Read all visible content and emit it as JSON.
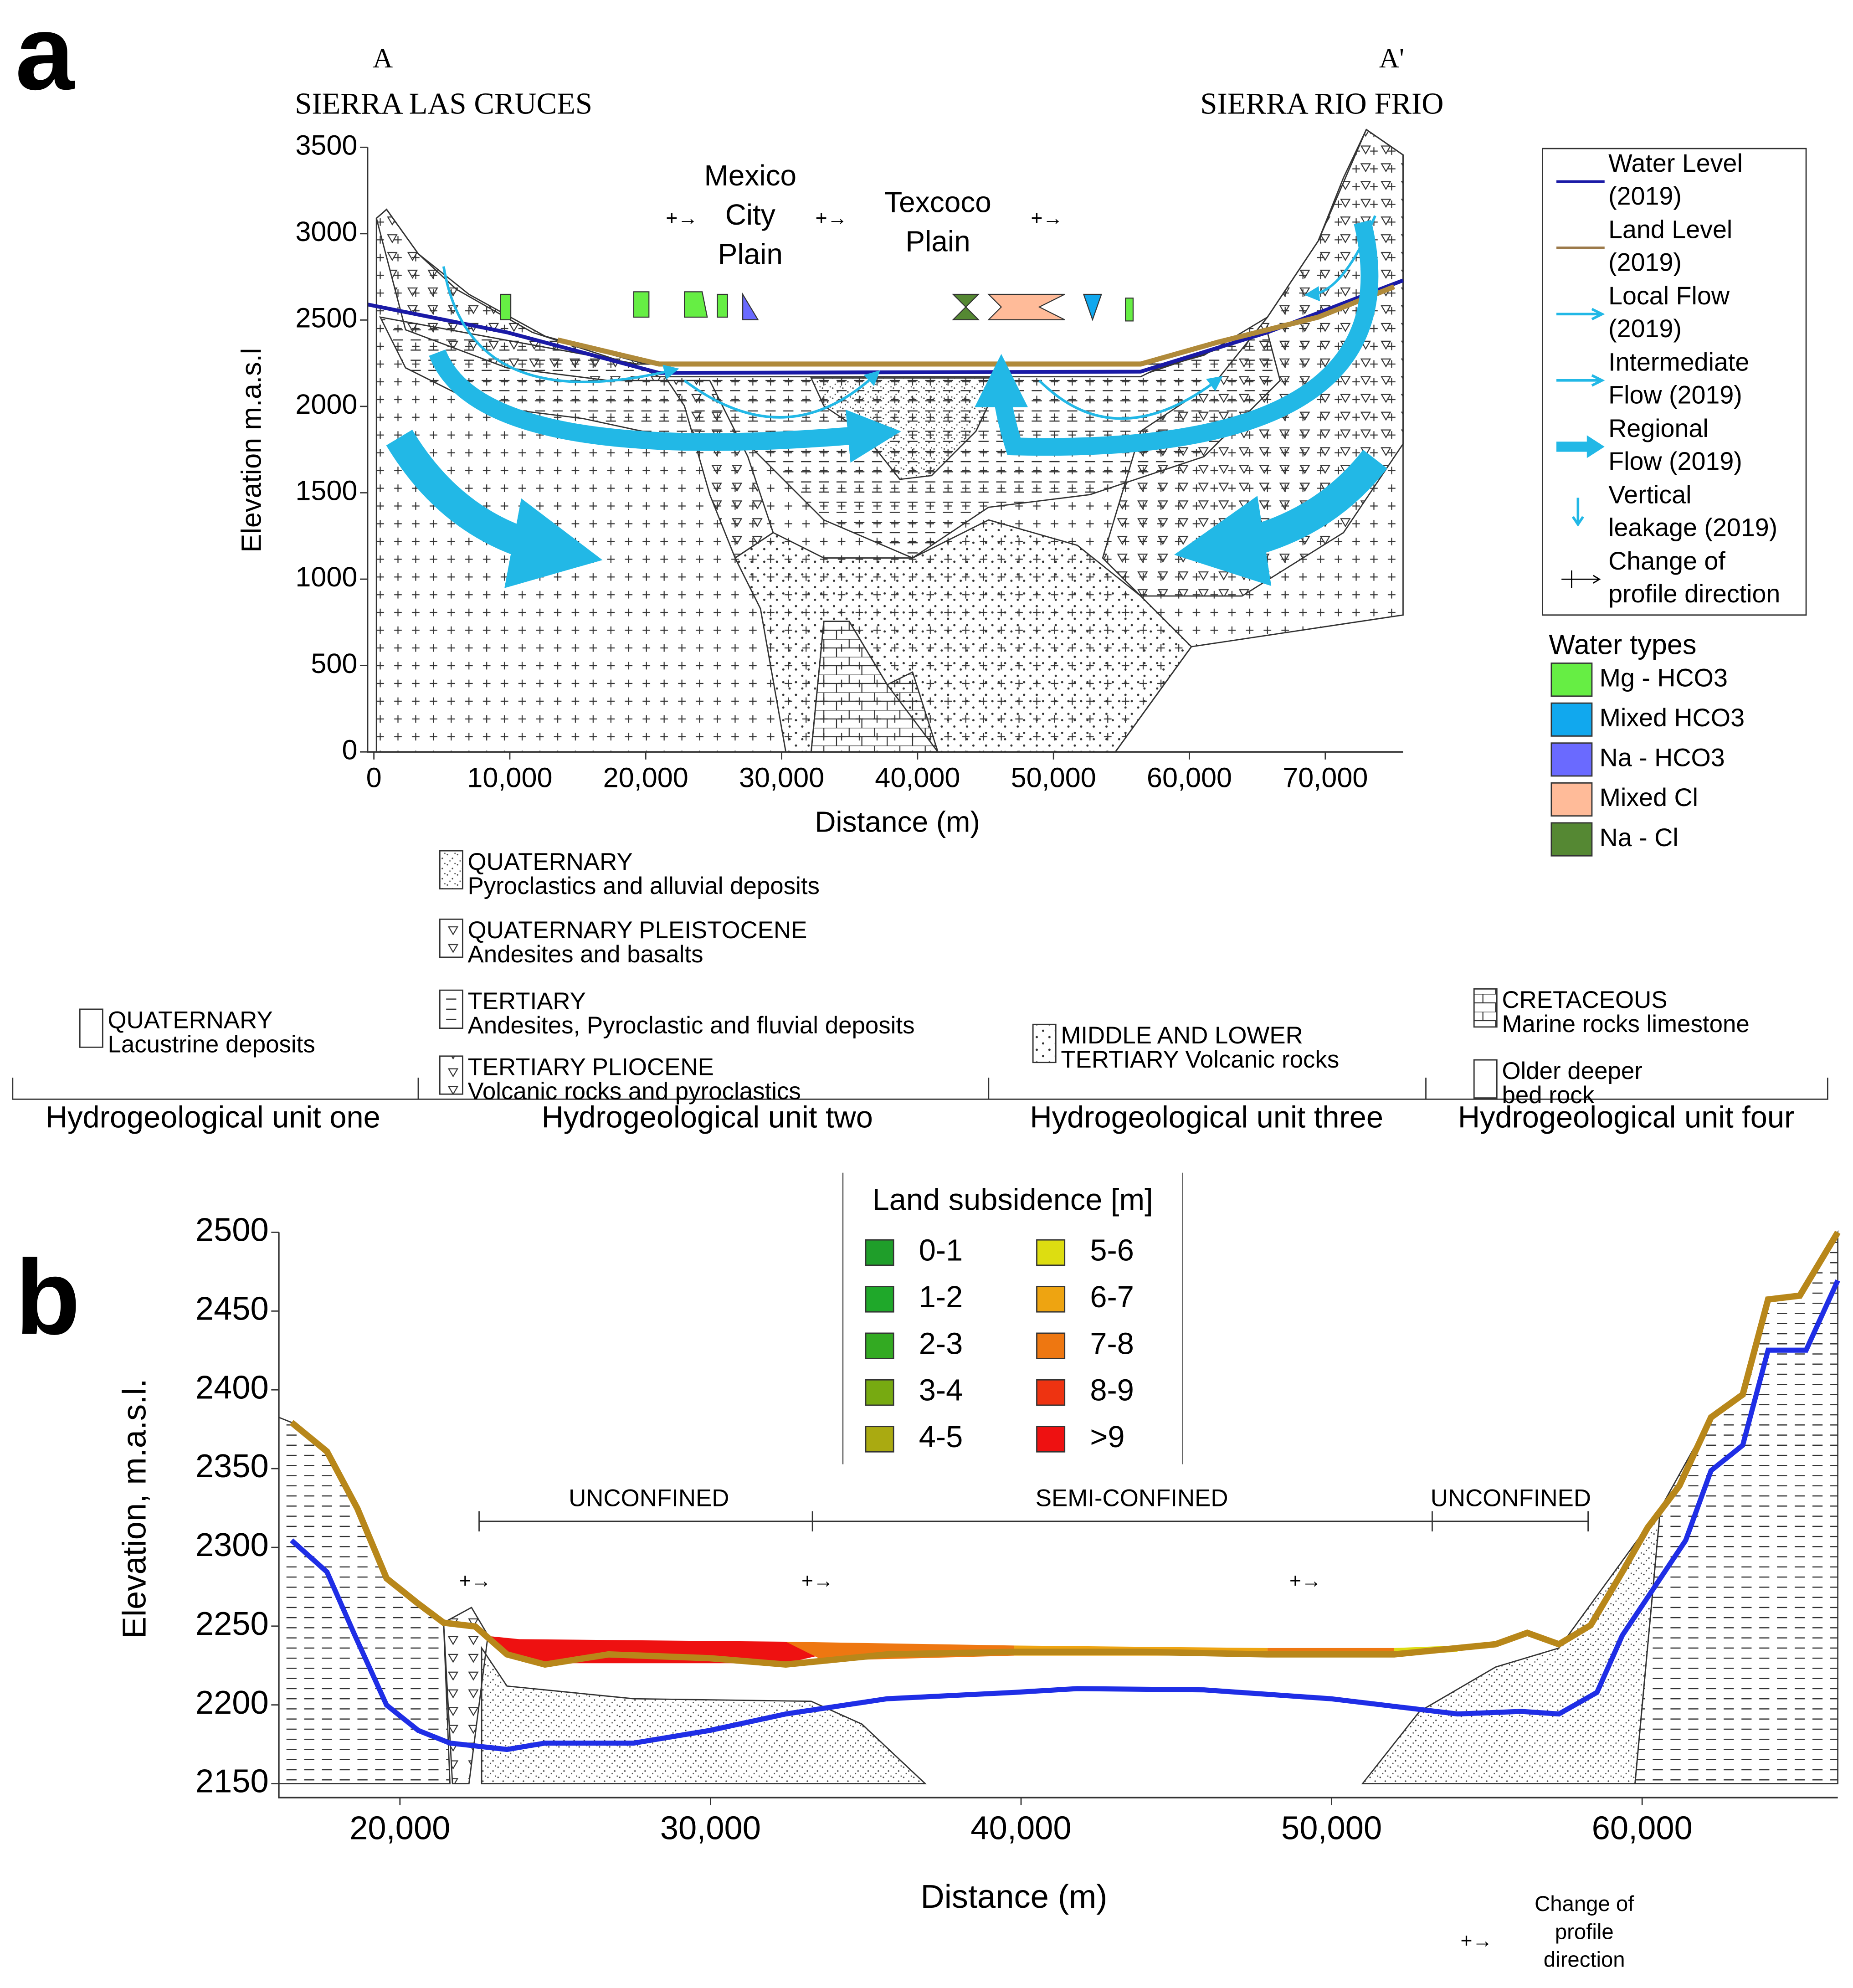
{
  "panel_a": {
    "label": "a",
    "section_start": "A",
    "section_end": "A'",
    "left_name": "SIERRA LAS CRUCES",
    "right_name": "SIERRA RIO FRIO",
    "plains": [
      [
        "Mexico",
        "City",
        "Plain"
      ],
      [
        "Texcoco",
        "Plain"
      ]
    ],
    "y_label": "Elevation m.a.s.l",
    "x_label": "Distance (m)",
    "ylim": [
      0,
      3500
    ],
    "yticks": [
      0,
      500,
      1000,
      1500,
      2000,
      2500,
      3000,
      3500
    ],
    "xlim": [
      0,
      76000
    ],
    "xticks": [
      0,
      {
        "value": 10000,
        "label": "10,000"
      },
      {
        "value": 20000,
        "label": "20,000"
      },
      {
        "value": 30000,
        "label": "30,000"
      },
      {
        "value": 40000,
        "label": "40,000"
      },
      {
        "value": 50000,
        "label": "50,000"
      },
      {
        "value": 60000,
        "label": "60,000"
      },
      {
        "value": 70000,
        "label": "70,000"
      }
    ],
    "legend": [
      {
        "lines": [
          "Water Level",
          "(2019)"
        ],
        "color": "#1a1aa6"
      },
      {
        "lines": [
          "Land Level",
          "(2019)"
        ],
        "color": "#9c7a4a"
      },
      {
        "lines": [
          "Local Flow",
          "(2019)"
        ],
        "color": "#22b8e6"
      },
      {
        "lines": [
          "Intermediate",
          "Flow (2019)"
        ],
        "color": "#22b8e6"
      },
      {
        "lines": [
          "Regional",
          "Flow (2019)"
        ],
        "color": "#22b8e6"
      },
      {
        "lines": [
          "Vertical",
          "leakage (2019)"
        ],
        "color": "#22b8e6"
      },
      {
        "lines": [
          "Change of",
          "profile direction"
        ],
        "color": "#000000"
      }
    ],
    "water_types_title": "Water types",
    "water_types": [
      {
        "label": "Mg - HCO3",
        "color": "#66ee44"
      },
      {
        "label": "Mixed HCO3",
        "color": "#11a8ee"
      },
      {
        "label": "Na - HCO3",
        "color": "#6a6aff"
      },
      {
        "label": "Mixed Cl",
        "color": "#ffbb99"
      },
      {
        "label": "Na - Cl",
        "color": "#558833"
      }
    ]
  },
  "units": [
    {
      "name": "Hydrogeological unit one",
      "entries": [
        [
          "QUATERNARY",
          "Lacustrine deposits"
        ]
      ]
    },
    {
      "name": "Hydrogeological unit two",
      "entries": [
        [
          "QUATERNARY",
          "Pyroclastics and alluvial deposits"
        ],
        [
          "QUATERNARY PLEISTOCENE",
          "Andesites and basalts"
        ],
        [
          "TERTIARY",
          "Andesites, Pyroclastic and fluvial deposits"
        ],
        [
          "TERTIARY PLIOCENE",
          "Volcanic rocks and pyroclastics"
        ]
      ]
    },
    {
      "name": "Hydrogeological unit three",
      "entries": [
        [
          "MIDDLE AND LOWER",
          "TERTIARY Volcanic rocks"
        ]
      ]
    },
    {
      "name": "Hydrogeological unit four",
      "entries": [
        [
          "CRETACEOUS",
          "Marine rocks limestone"
        ],
        [
          "Older deeper",
          "bed rock"
        ]
      ]
    }
  ],
  "panel_b": {
    "label": "b",
    "y_label": "Elevation, m.a.s.l.",
    "x_label": "Distance (m)",
    "ylim": [
      2150,
      2500
    ],
    "yticks": [
      2150,
      2200,
      2250,
      2300,
      2350,
      2400,
      2450,
      2500
    ],
    "xlim": [
      16100,
      66300
    ],
    "xticks": [
      {
        "value": 20000,
        "label": "20,000"
      },
      {
        "value": 30000,
        "label": "30,000"
      },
      {
        "value": 40000,
        "label": "40,000"
      },
      {
        "value": 50000,
        "label": "50,000"
      },
      {
        "value": 60000,
        "label": "60,000"
      }
    ],
    "zones": [
      "UNCONFINED",
      "SEMI-CONFINED",
      "UNCONFINED"
    ],
    "legend_title": "Land subsidence [m]",
    "classes": [
      {
        "label": "0-1",
        "color": "#1f9e2a"
      },
      {
        "label": "1-2",
        "color": "#1fa82a"
      },
      {
        "label": "2-3",
        "color": "#33aa22"
      },
      {
        "label": "3-4",
        "color": "#77aa11"
      },
      {
        "label": "4-5",
        "color": "#aaaa11"
      },
      {
        "label": "5-6",
        "color": "#dddd11"
      },
      {
        "label": "6-7",
        "color": "#eea411"
      },
      {
        "label": "7-8",
        "color": "#ee7711"
      },
      {
        "label": "8-9",
        "color": "#ee3311"
      },
      {
        "label": ">9",
        "color": "#ee1111"
      }
    ],
    "note": [
      "Change of",
      "profile",
      "direction"
    ]
  }
}
